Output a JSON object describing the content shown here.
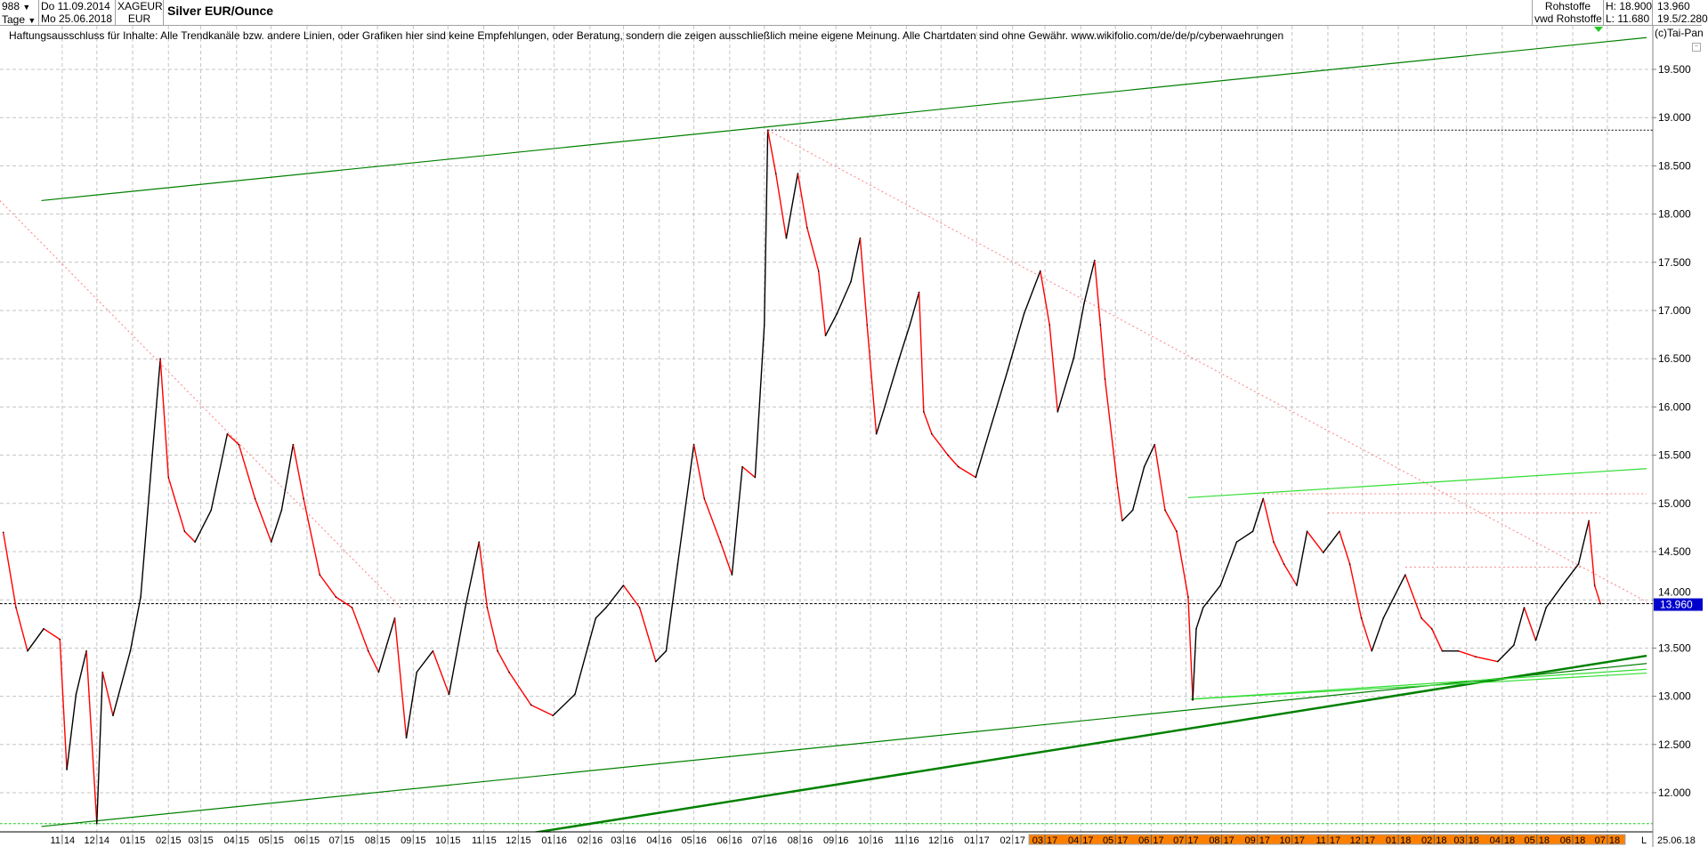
{
  "header": {
    "bars_count": "988",
    "period": "Tage",
    "date_from": "Do 11.09.2014",
    "date_to": "Mo 25.06.2018",
    "symbol": "XAGEUR",
    "currency": "EUR",
    "title": "Silver EUR/Ounce",
    "source1": "Rohstoffe",
    "source2": "vwd Rohstoffe",
    "high": "H: 18.900",
    "low": "L: 11.680",
    "last": "13.960",
    "extra": "19.5/2.280"
  },
  "disclaimer": "Haftungsausschluss für Inhalte: Alle Trendkanäle bzw. andere Linien, oder Grafiken hier sind keine Empfehlungen, oder Beratung, sondern die zeigen ausschließlich meine eigene Meinung. Alle Chartdaten sind ohne Gewähr.  www.wikifolio.com/de/de/p/cyberwaehrungen",
  "copyright": "(c)Tai-Pan",
  "footer": {
    "mode": "L",
    "date": "25.06.18"
  },
  "colors": {
    "up": "#000000",
    "down": "#ff0000",
    "trend_dark": "#008000",
    "trend_light": "#33dd33",
    "resistance": "#ff8080",
    "highlight": "#ff8000",
    "last_label_bg": "#0000cc"
  },
  "chart_data": {
    "type": "line",
    "title": "Silver EUR/Ounce",
    "ylim": [
      11.5,
      19.9
    ],
    "yticks": [
      "12.000",
      "12.500",
      "13.000",
      "13.500",
      "14.000",
      "14.500",
      "15.000",
      "15.500",
      "16.000",
      "16.500",
      "17.000",
      "17.500",
      "18.000",
      "18.500",
      "19.000",
      "19.500"
    ],
    "xticks": [
      "11 14",
      "12 14",
      "01 15",
      "02 15",
      "03 15",
      "04 15",
      "05 15",
      "06 15",
      "07 15",
      "08 15",
      "09 15",
      "10 15",
      "11 15",
      "12 15",
      "01 16",
      "02 16",
      "03 16",
      "04 16",
      "05 16",
      "06 16",
      "07 16",
      "08 16",
      "09 16",
      "10 16",
      "11 16",
      "12 16",
      "01 17",
      "02 17",
      "03 17",
      "04 17",
      "05 17",
      "06 17",
      "07 17",
      "08 17",
      "09 17",
      "10 17",
      "11 17",
      "12 17",
      "01 18",
      "02 18",
      "03 18",
      "04 18",
      "05 18",
      "06 18",
      "07 18"
    ],
    "highlighted_xticks_from": "03 17",
    "grid": true,
    "last_value": "13.960",
    "series": [
      {
        "points": [
          [
            "2014-09-11",
            14.7
          ],
          [
            "2014-09-22",
            13.92
          ],
          [
            "2014-10-02",
            13.47
          ],
          [
            "2014-10-16",
            13.7
          ],
          [
            "2014-10-30",
            13.59
          ],
          [
            "2014-11-05",
            12.24
          ],
          [
            "2014-11-13",
            13.02
          ],
          [
            "2014-11-22",
            13.47
          ],
          [
            "2014-12-01",
            11.68
          ],
          [
            "2014-12-06",
            13.25
          ],
          [
            "2014-12-15",
            12.8
          ],
          [
            "2014-12-30",
            13.47
          ],
          [
            "2015-01-08",
            14.03
          ],
          [
            "2015-01-18",
            15.5
          ],
          [
            "2015-01-25",
            16.5
          ],
          [
            "2015-02-01",
            15.27
          ],
          [
            "2015-02-15",
            14.71
          ],
          [
            "2015-02-24",
            14.6
          ],
          [
            "2015-03-10",
            14.93
          ],
          [
            "2015-03-24",
            15.72
          ],
          [
            "2015-04-03",
            15.61
          ],
          [
            "2015-04-17",
            15.05
          ],
          [
            "2015-05-01",
            14.6
          ],
          [
            "2015-05-10",
            14.93
          ],
          [
            "2015-05-20",
            15.61
          ],
          [
            "2015-05-29",
            15.05
          ],
          [
            "2015-06-12",
            14.26
          ],
          [
            "2015-06-26",
            14.03
          ],
          [
            "2015-07-10",
            13.92
          ],
          [
            "2015-07-24",
            13.47
          ],
          [
            "2015-08-02",
            13.25
          ],
          [
            "2015-08-16",
            13.81
          ],
          [
            "2015-08-26",
            12.57
          ],
          [
            "2015-09-04",
            13.25
          ],
          [
            "2015-09-18",
            13.47
          ],
          [
            "2015-10-02",
            13.02
          ],
          [
            "2015-10-16",
            13.92
          ],
          [
            "2015-10-28",
            14.6
          ],
          [
            "2015-11-04",
            13.92
          ],
          [
            "2015-11-13",
            13.47
          ],
          [
            "2015-11-23",
            13.25
          ],
          [
            "2015-12-12",
            12.91
          ],
          [
            "2015-12-31",
            12.8
          ],
          [
            "2016-01-19",
            13.02
          ],
          [
            "2016-02-06",
            13.81
          ],
          [
            "2016-02-15",
            13.92
          ],
          [
            "2016-03-01",
            14.15
          ],
          [
            "2016-03-15",
            13.92
          ],
          [
            "2016-03-29",
            13.36
          ],
          [
            "2016-04-07",
            13.47
          ],
          [
            "2016-04-17",
            14.37
          ],
          [
            "2016-05-01",
            15.61
          ],
          [
            "2016-05-10",
            15.05
          ],
          [
            "2016-05-24",
            14.6
          ],
          [
            "2016-06-03",
            14.26
          ],
          [
            "2016-06-12",
            15.38
          ],
          [
            "2016-06-23",
            15.27
          ],
          [
            "2016-07-01",
            16.85
          ],
          [
            "2016-07-04",
            18.87
          ],
          [
            "2016-07-11",
            18.42
          ],
          [
            "2016-07-20",
            17.75
          ],
          [
            "2016-07-30",
            18.42
          ],
          [
            "2016-08-07",
            17.86
          ],
          [
            "2016-08-17",
            17.41
          ],
          [
            "2016-08-23",
            16.74
          ],
          [
            "2016-09-02",
            16.97
          ],
          [
            "2016-09-14",
            17.3
          ],
          [
            "2016-09-22",
            17.75
          ],
          [
            "2016-09-28",
            16.85
          ],
          [
            "2016-10-06",
            15.72
          ],
          [
            "2016-10-12",
            15.95
          ],
          [
            "2016-10-26",
            16.51
          ],
          [
            "2016-11-04",
            16.85
          ],
          [
            "2016-11-12",
            17.19
          ],
          [
            "2016-11-16",
            15.95
          ],
          [
            "2016-11-23",
            15.72
          ],
          [
            "2016-12-07",
            15.5
          ],
          [
            "2016-12-16",
            15.38
          ],
          [
            "2016-12-31",
            15.27
          ],
          [
            "2017-01-14",
            15.83
          ],
          [
            "2017-01-28",
            16.39
          ],
          [
            "2017-02-11",
            16.97
          ],
          [
            "2017-02-25",
            17.41
          ],
          [
            "2017-03-05",
            16.85
          ],
          [
            "2017-03-12",
            15.95
          ],
          [
            "2017-03-26",
            16.51
          ],
          [
            "2017-04-04",
            17.08
          ],
          [
            "2017-04-13",
            17.52
          ],
          [
            "2017-04-18",
            16.85
          ],
          [
            "2017-04-22",
            16.29
          ],
          [
            "2017-05-03",
            15.16
          ],
          [
            "2017-05-07",
            14.82
          ],
          [
            "2017-05-16",
            14.93
          ],
          [
            "2017-05-26",
            15.38
          ],
          [
            "2017-06-04",
            15.61
          ],
          [
            "2017-06-13",
            14.93
          ],
          [
            "2017-06-23",
            14.71
          ],
          [
            "2017-07-03",
            14.03
          ],
          [
            "2017-07-07",
            12.96
          ],
          [
            "2017-07-10",
            13.7
          ],
          [
            "2017-07-16",
            13.92
          ],
          [
            "2017-07-31",
            14.15
          ],
          [
            "2017-08-14",
            14.6
          ],
          [
            "2017-08-28",
            14.71
          ],
          [
            "2017-09-06",
            15.05
          ],
          [
            "2017-09-15",
            14.6
          ],
          [
            "2017-09-24",
            14.37
          ],
          [
            "2017-10-05",
            14.15
          ],
          [
            "2017-10-14",
            14.71
          ],
          [
            "2017-10-28",
            14.49
          ],
          [
            "2017-11-11",
            14.71
          ],
          [
            "2017-11-20",
            14.37
          ],
          [
            "2017-11-30",
            13.81
          ],
          [
            "2017-12-09",
            13.47
          ],
          [
            "2017-12-19",
            13.81
          ],
          [
            "2018-01-07",
            14.26
          ],
          [
            "2018-01-21",
            13.81
          ],
          [
            "2018-01-30",
            13.7
          ],
          [
            "2018-02-08",
            13.47
          ],
          [
            "2018-02-22",
            13.47
          ],
          [
            "2018-03-09",
            13.41
          ],
          [
            "2018-03-28",
            13.36
          ],
          [
            "2018-04-11",
            13.53
          ],
          [
            "2018-04-20",
            13.92
          ],
          [
            "2018-04-30",
            13.58
          ],
          [
            "2018-05-09",
            13.92
          ],
          [
            "2018-05-23",
            14.15
          ],
          [
            "2018-06-06",
            14.37
          ],
          [
            "2018-06-15",
            14.82
          ],
          [
            "2018-06-20",
            14.15
          ],
          [
            "2018-06-25",
            13.96
          ]
        ]
      }
    ],
    "trendlines": [
      {
        "kind": "channel-upper",
        "color": "trend_dark",
        "from": [
          "2014-10-14",
          18.14
        ],
        "to": [
          "2018-08-04",
          19.83
        ]
      },
      {
        "kind": "channel-lower",
        "color": "trend_dark",
        "from": [
          "2014-10-14",
          11.65
        ],
        "to": [
          "2018-08-04",
          13.34
        ]
      },
      {
        "kind": "support-thick",
        "color": "trend_dark",
        "from": [
          "2015-12-01",
          11.56
        ],
        "to": [
          "2018-08-04",
          13.42
        ]
      },
      {
        "kind": "support",
        "color": "trend_light",
        "from": [
          "2017-07-05",
          12.97
        ],
        "to": [
          "2018-08-04",
          13.28
        ]
      },
      {
        "kind": "support",
        "color": "trend_light",
        "from": [
          "2017-07-05",
          12.97
        ],
        "to": [
          "2018-08-04",
          13.24
        ]
      },
      {
        "kind": "resistance-channel",
        "color": "trend_light",
        "from": [
          "2017-07-03",
          15.06
        ],
        "to": [
          "2018-08-04",
          15.36
        ]
      },
      {
        "kind": "resistance-dotted",
        "color": "resistance",
        "from": [
          "2014-09-08",
          18.14
        ],
        "to": [
          "2015-08-21",
          13.92
        ]
      },
      {
        "kind": "resistance-dotted",
        "color": "resistance",
        "from": [
          "2016-07-04",
          18.87
        ],
        "to": [
          "2018-08-04",
          13.98
        ]
      },
      {
        "kind": "level-dotted",
        "color": "resistance",
        "from": [
          "2017-09-06",
          15.1
        ],
        "to": [
          "2018-08-04",
          15.1
        ]
      },
      {
        "kind": "level-dotted",
        "color": "resistance",
        "from": [
          "2017-11-01",
          14.9
        ],
        "to": [
          "2018-06-25",
          14.9
        ]
      },
      {
        "kind": "level-dotted",
        "color": "resistance",
        "from": [
          "2018-01-07",
          14.34
        ],
        "to": [
          "2018-06-10",
          14.34
        ]
      }
    ],
    "levels": [
      {
        "kind": "high",
        "value": 18.87,
        "from": "2016-07-04",
        "color": "#000000"
      },
      {
        "kind": "last",
        "value": 13.96,
        "from": "2014-09-08",
        "color": "#000000"
      },
      {
        "kind": "low",
        "value": 11.68,
        "from": "2014-09-08",
        "color": "#22cc22"
      }
    ]
  }
}
